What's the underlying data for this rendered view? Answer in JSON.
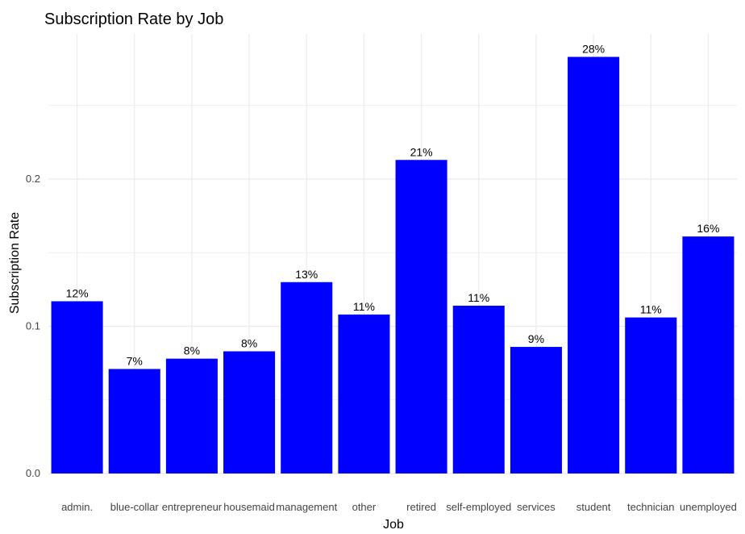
{
  "chart_data": {
    "type": "bar",
    "title": "Subscription Rate by Job",
    "xlabel": "Job",
    "ylabel": "Subscription Rate",
    "categories": [
      "admin.",
      "blue-collar",
      "entrepreneur",
      "housemaid",
      "management",
      "other",
      "retired",
      "self-employed",
      "services",
      "student",
      "technician",
      "unemployed"
    ],
    "values": [
      0.117,
      0.071,
      0.078,
      0.083,
      0.13,
      0.108,
      0.213,
      0.114,
      0.086,
      0.283,
      0.106,
      0.161
    ],
    "data_labels": [
      "12%",
      "7%",
      "8%",
      "8%",
      "13%",
      "11%",
      "21%",
      "11%",
      "9%",
      "28%",
      "11%",
      "16%"
    ],
    "y_ticks": [
      0.0,
      0.1,
      0.2
    ],
    "y_tick_labels": [
      "0.0",
      "0.1",
      "0.2"
    ],
    "ylim": [
      0,
      0.3
    ],
    "grid": true,
    "bar_color": "#0000ff",
    "grid_color": "#ebebeb",
    "background": "#ffffff"
  }
}
